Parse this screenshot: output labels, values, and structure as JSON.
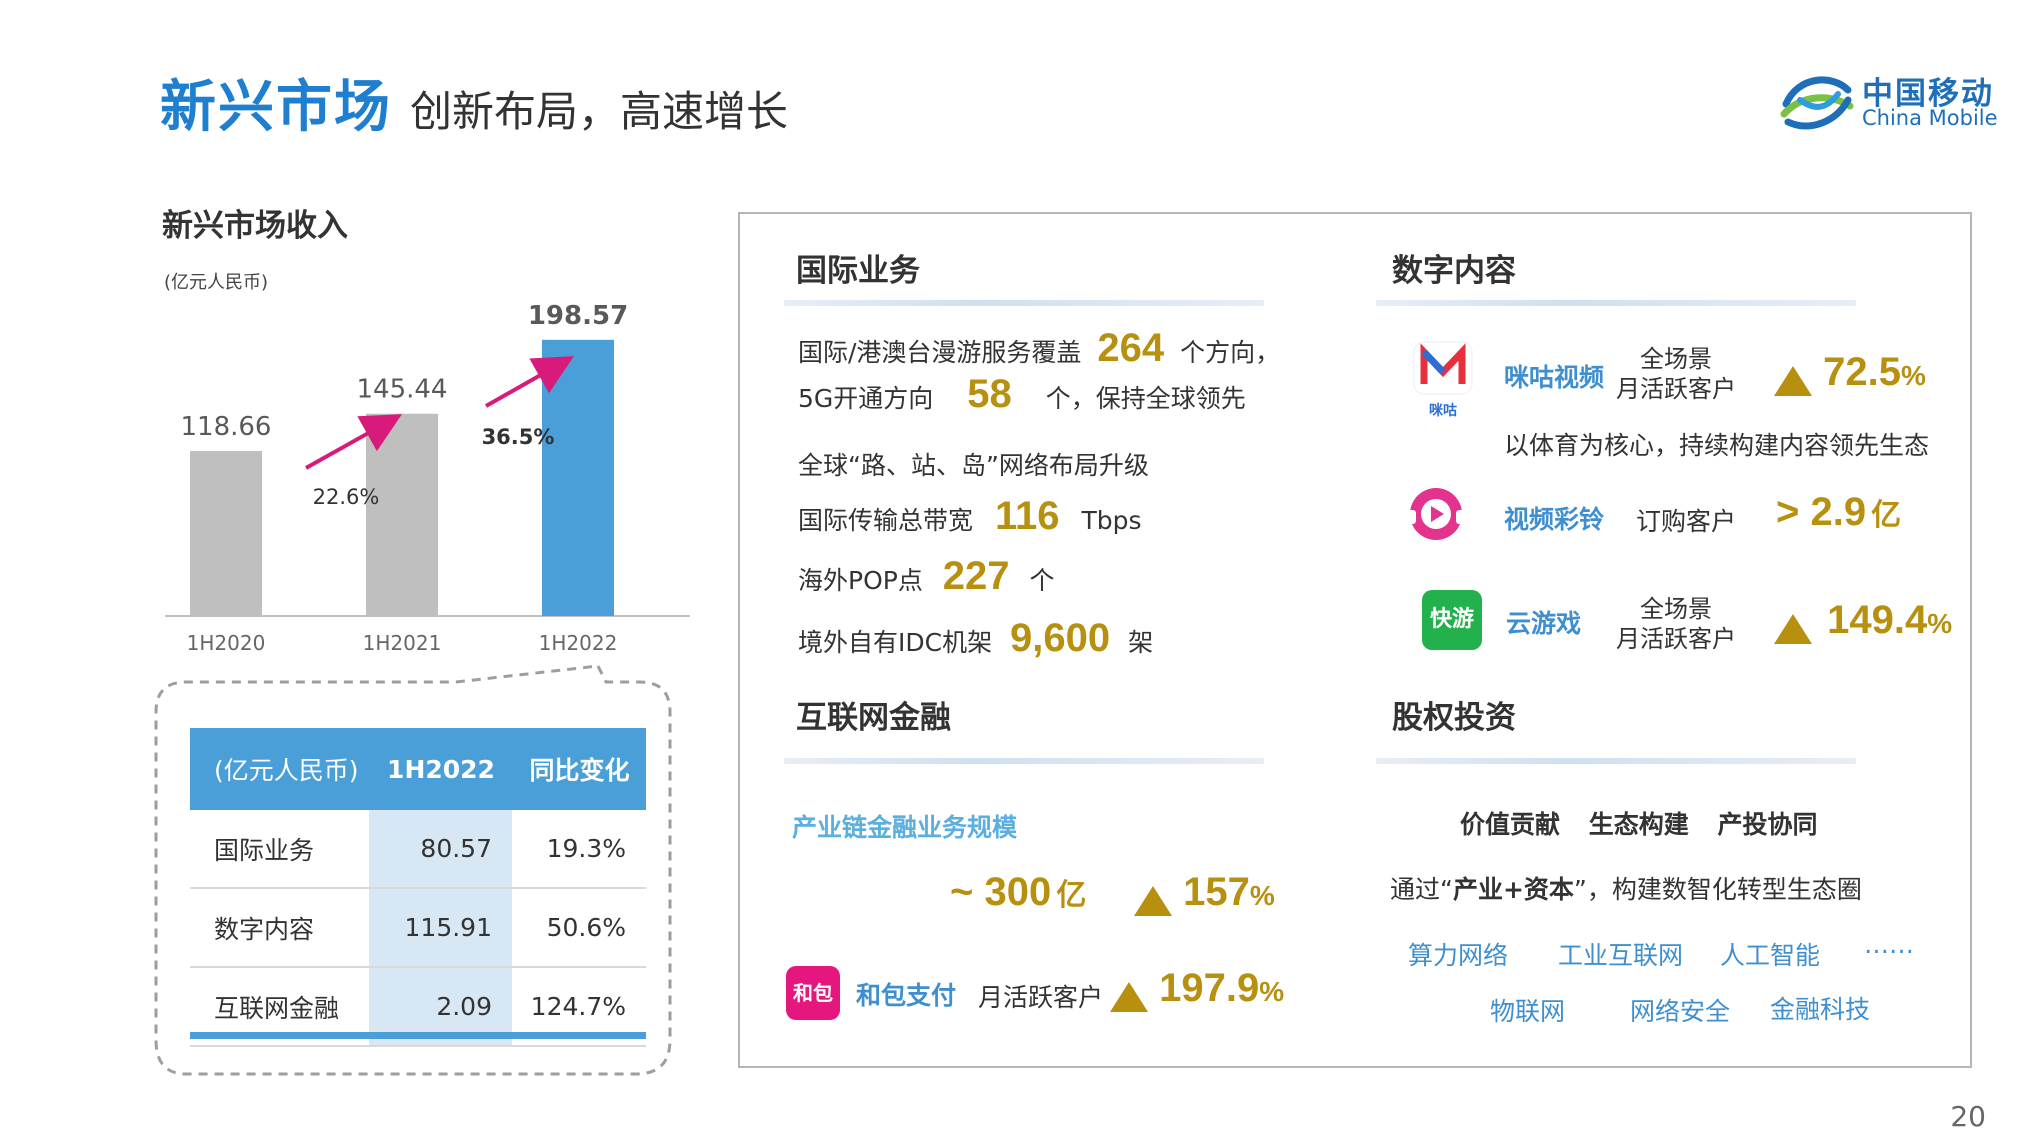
{
  "header": {
    "title": "新兴市场",
    "subtitle": "创新布局，高速增长"
  },
  "logo": {
    "cn": "中国移动",
    "en": "China Mobile",
    "colors": [
      "#1f6fb8",
      "#7ac043"
    ]
  },
  "page_number": "20",
  "chart_data": {
    "type": "bar",
    "title": "新兴市场收入",
    "unit": "(亿元人民币)",
    "categories": [
      "1H2020",
      "1H2021",
      "1H2022"
    ],
    "values": [
      118.66,
      145.44,
      198.57
    ],
    "value_labels": [
      "118.66",
      "145.44",
      "198.57"
    ],
    "colors": [
      "#bfbfbf",
      "#bfbfbf",
      "#4a9fd8"
    ],
    "growth": [
      "22.6%",
      "36.5%"
    ],
    "growth_color": "#d81b7a",
    "ylim": [
      0,
      220
    ]
  },
  "table": {
    "headers": [
      "(亿元人民币)",
      "1H2022",
      "同比变化"
    ],
    "rows": [
      [
        "国际业务",
        "80.57",
        "19.3%"
      ],
      [
        "数字内容",
        "115.91",
        "50.6%"
      ],
      [
        "互联网金融",
        "2.09",
        "124.7%"
      ]
    ]
  },
  "intl": {
    "title": "国际业务",
    "l1a": "国际/港澳台漫游服务覆盖",
    "l1n": "264",
    "l1b": "个方向，",
    "l2a": "5G开通方向",
    "l2n": "58",
    "l2b": "个，保持全球领先",
    "l3": "全球“路、站、岛”网络布局升级",
    "l4a": "国际传输总带宽",
    "l4n": "116",
    "l4b": "Tbps",
    "l5a": "海外POP点",
    "l5n": "227",
    "l5b": "个",
    "l6a": "境外自有IDC机架",
    "l6n": "9,600",
    "l6b": "架"
  },
  "digital": {
    "title": "数字内容",
    "migu": {
      "name": "咪咕视频",
      "icon_text": "咪咕",
      "metric_l1": "全场景",
      "metric_l2": "月活跃客户",
      "value": "72.5",
      "pct": "%",
      "desc": "以体育为核心，持续构建内容领先生态"
    },
    "ring": {
      "name": "视频彩铃",
      "metric": "订购客户",
      "value": "> 2.9",
      "unit": "亿"
    },
    "game": {
      "name": "云游戏",
      "icon_text": "快游",
      "metric_l1": "全场景",
      "metric_l2": "月活跃客户",
      "value": "149.4",
      "pct": "%"
    }
  },
  "finance": {
    "title": "互联网金融",
    "chain_label": "产业链金融业务规模",
    "chain_value": "~ 300",
    "chain_unit": "亿",
    "chain_growth": "157",
    "pct": "%",
    "hebao": {
      "icon_text": "和包",
      "name": "和包支付",
      "metric": "月活跃客户",
      "growth": "197.9",
      "pct": "%"
    }
  },
  "equity": {
    "title": "股权投资",
    "pillars": [
      "价值贡献",
      "生态构建",
      "产投协同"
    ],
    "desc_a": "通过“",
    "desc_b": "产业+资本",
    "desc_c": "”，构建数智化转型生态圈",
    "tags_row1": [
      "算力网络",
      "工业互联网",
      "人工智能",
      "……"
    ],
    "tags_row2": [
      "物联网",
      "网络安全",
      "金融科技"
    ]
  }
}
